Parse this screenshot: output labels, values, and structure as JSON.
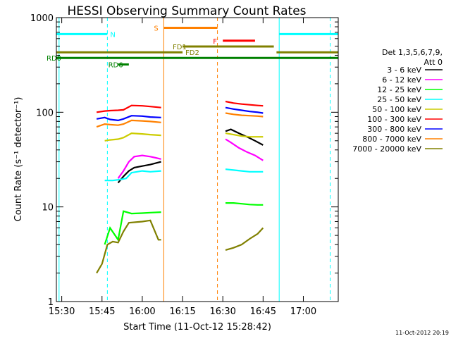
{
  "chart_data": {
    "type": "line",
    "title": "HESSI Observing Summary Count Rates",
    "xlabel": "Start Time (11-Oct-12 15:28:42)",
    "ylabel": "Count Rate (s⁻¹ detector⁻¹)",
    "yscale": "log",
    "ylim": [
      1,
      1000
    ],
    "xlim": [
      "15:28",
      "17:13"
    ],
    "x_ticks": [
      "15:30",
      "15:45",
      "16:00",
      "16:15",
      "16:30",
      "16:45",
      "17:00"
    ],
    "y_ticks": [
      "1",
      "10",
      "100",
      "1000"
    ],
    "timestamp": "11-Oct-2012 20:19",
    "legend": {
      "header": [
        "Det 1,3,5,6,7,9,",
        "Att 0"
      ],
      "placement": "right"
    },
    "series": [
      {
        "name": "3 - 6 keV",
        "color": "#000000",
        "segments": [
          {
            "x": [
              "15:51",
              "15:53",
              "15:55",
              "15:57",
              "16:00",
              "16:03",
              "16:05",
              "16:07"
            ],
            "y": [
              18,
              21,
              24,
              26,
              27,
              28,
              29,
              30
            ]
          },
          {
            "x": [
              "16:31",
              "16:33",
              "16:36",
              "16:39",
              "16:42",
              "16:45"
            ],
            "y": [
              63,
              66,
              60,
              55,
              50,
              45
            ]
          }
        ]
      },
      {
        "name": "6 - 12 keV",
        "color": "#ff00ff",
        "segments": [
          {
            "x": [
              "15:51",
              "15:53",
              "15:55",
              "15:57",
              "16:00",
              "16:03",
              "16:05",
              "16:07"
            ],
            "y": [
              20,
              24,
              30,
              34,
              35,
              34,
              33,
              32
            ]
          },
          {
            "x": [
              "16:31",
              "16:33",
              "16:36",
              "16:39",
              "16:42",
              "16:45"
            ],
            "y": [
              52,
              48,
              42,
              38,
              35,
              31
            ]
          }
        ]
      },
      {
        "name": "12 - 25 keV",
        "color": "#00ff00",
        "segments": [
          {
            "x": [
              "15:46",
              "15:48",
              "15:51",
              "15:53",
              "15:56",
              "16:00",
              "16:03",
              "16:07"
            ],
            "y": [
              4,
              6,
              4.5,
              9,
              8.5,
              8.6,
              8.7,
              8.8
            ]
          },
          {
            "x": [
              "16:31",
              "16:34",
              "16:37",
              "16:40",
              "16:43",
              "16:45"
            ],
            "y": [
              11,
              11,
              10.8,
              10.6,
              10.5,
              10.5
            ]
          }
        ]
      },
      {
        "name": "25 - 50 keV",
        "color": "#00ffff",
        "segments": [
          {
            "x": [
              "15:46",
              "15:49",
              "15:52",
              "15:54",
              "15:56",
              "16:00",
              "16:03",
              "16:07"
            ],
            "y": [
              19,
              19,
              19.5,
              20,
              23,
              24,
              23.5,
              24
            ]
          },
          {
            "x": [
              "16:31",
              "16:34",
              "16:37",
              "16:40",
              "16:43",
              "16:45"
            ],
            "y": [
              25,
              24.5,
              24,
              23.5,
              23.5,
              23.5
            ]
          }
        ]
      },
      {
        "name": "50 - 100 keV",
        "color": "#cccc00",
        "segments": [
          {
            "x": [
              "15:46",
              "15:48",
              "15:51",
              "15:53",
              "15:56",
              "16:00",
              "16:03",
              "16:07"
            ],
            "y": [
              50,
              51,
              52,
              54,
              60,
              59,
              58,
              57
            ]
          },
          {
            "x": [
              "16:31",
              "16:34",
              "16:37",
              "16:40",
              "16:43",
              "16:45"
            ],
            "y": [
              60,
              58,
              56,
              55,
              55,
              55
            ]
          }
        ]
      },
      {
        "name": "100 - 300 keV",
        "color": "#ff0000",
        "segments": [
          {
            "x": [
              "15:43",
              "15:46",
              "15:48",
              "15:51",
              "15:53",
              "15:56",
              "16:00",
              "16:03",
              "16:07"
            ],
            "y": [
              100,
              103,
              104,
              105,
              106,
              118,
              117,
              115,
              112
            ]
          },
          {
            "x": [
              "16:31",
              "16:34",
              "16:37",
              "16:40",
              "16:43",
              "16:45"
            ],
            "y": [
              130,
              125,
              122,
              120,
              118,
              117
            ]
          }
        ]
      },
      {
        "name": "300 - 800 keV",
        "color": "#0000ff",
        "segments": [
          {
            "x": [
              "15:43",
              "15:46",
              "15:48",
              "15:51",
              "15:53",
              "15:56",
              "16:00",
              "16:03",
              "16:07"
            ],
            "y": [
              85,
              88,
              84,
              82,
              85,
              92,
              91,
              89,
              88
            ]
          },
          {
            "x": [
              "16:31",
              "16:34",
              "16:37",
              "16:40",
              "16:43",
              "16:45"
            ],
            "y": [
              112,
              108,
              105,
              102,
              100,
              98
            ]
          }
        ]
      },
      {
        "name": "800 - 7000 keV",
        "color": "#ff8000",
        "segments": [
          {
            "x": [
              "15:43",
              "15:46",
              "15:48",
              "15:51",
              "15:53",
              "15:56",
              "16:00",
              "16:03",
              "16:07"
            ],
            "y": [
              70,
              75,
              74,
              73,
              75,
              82,
              81,
              80,
              78
            ]
          },
          {
            "x": [
              "16:31",
              "16:34",
              "16:37",
              "16:40",
              "16:43",
              "16:45"
            ],
            "y": [
              98,
              95,
              93,
              92,
              91,
              90
            ]
          }
        ]
      },
      {
        "name": "7000 - 20000 keV",
        "color": "#808000",
        "segments": [
          {
            "x": [
              "15:43",
              "15:45",
              "15:47",
              "15:49",
              "15:51",
              "15:53",
              "15:55",
              "16:00",
              "16:03",
              "16:06",
              "16:07"
            ],
            "y": [
              2,
              2.5,
              4,
              4.3,
              4.2,
              5.5,
              6.8,
              7,
              7.2,
              4.5,
              4.5
            ]
          },
          {
            "x": [
              "16:31",
              "16:34",
              "16:37",
              "16:40",
              "16:43",
              "16:45"
            ],
            "y": [
              3.5,
              3.7,
              4,
              4.6,
              5.2,
              6
            ]
          }
        ]
      }
    ],
    "vertical_lines": [
      {
        "x": "15:29",
        "color": "#00ffff",
        "style": "solid"
      },
      {
        "x": "15:47",
        "color": "#00ffff",
        "style": "dashed"
      },
      {
        "x": "16:08",
        "color": "#ff8000",
        "style": "solid"
      },
      {
        "x": "16:28",
        "color": "#ff8000",
        "style": "dashed"
      },
      {
        "x": "16:51",
        "color": "#00ffff",
        "style": "solid"
      },
      {
        "x": "17:10",
        "color": "#00ffff",
        "style": "dashed"
      }
    ],
    "flag_bars": [
      {
        "label": "N",
        "color": "#00ffff",
        "y": 670,
        "segments": [
          [
            "15:28",
            "15:47"
          ],
          [
            "16:51",
            "17:13"
          ]
        ]
      },
      {
        "label": "S",
        "color": "#ff8000",
        "y": 780,
        "segments": [
          [
            "16:08",
            "16:28"
          ]
        ]
      },
      {
        "label": "F",
        "color": "#ff0000",
        "y": 570,
        "segments": [
          [
            "16:30",
            "16:42"
          ]
        ]
      },
      {
        "label": "FD1",
        "color": "#808000",
        "y": 495,
        "segments": [
          [
            "16:15",
            "16:49"
          ]
        ]
      },
      {
        "label": "FD2",
        "color": "#808000",
        "y": 430,
        "segments": [
          [
            "15:28",
            "16:15"
          ],
          [
            "16:50",
            "17:13"
          ]
        ]
      },
      {
        "label": "RD0",
        "color": "#008000",
        "y": 375,
        "segments": [
          [
            "15:28",
            "17:13"
          ]
        ]
      },
      {
        "label": "RD6",
        "color": "#008000",
        "y": 320,
        "segments": [
          [
            "15:51",
            "15:55"
          ]
        ]
      }
    ]
  }
}
